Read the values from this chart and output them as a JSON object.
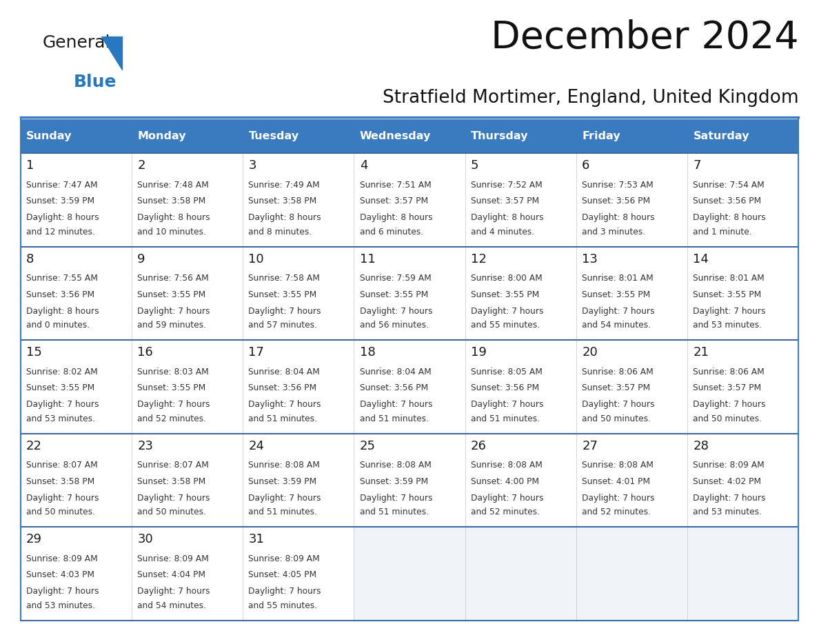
{
  "title": "December 2024",
  "subtitle": "Stratfield Mortimer, England, United Kingdom",
  "header_color": "#3a7abf",
  "header_text_color": "#ffffff",
  "cell_bg_color": "#ffffff",
  "empty_cell_bg_color": "#f0f4f8",
  "border_color": "#3a7abf",
  "row_border_color": "#3a6a9f",
  "col_border_color": "#cccccc",
  "day_names": [
    "Sunday",
    "Monday",
    "Tuesday",
    "Wednesday",
    "Thursday",
    "Friday",
    "Saturday"
  ],
  "logo_color1": "#1a1a1a",
  "logo_color2": "#2878bf",
  "triangle_color": "#2878bf",
  "weeks": [
    [
      {
        "day": 1,
        "sunrise": "7:47 AM",
        "sunset": "3:59 PM",
        "daylight1": "8 hours",
        "daylight2": "and 12 minutes."
      },
      {
        "day": 2,
        "sunrise": "7:48 AM",
        "sunset": "3:58 PM",
        "daylight1": "8 hours",
        "daylight2": "and 10 minutes."
      },
      {
        "day": 3,
        "sunrise": "7:49 AM",
        "sunset": "3:58 PM",
        "daylight1": "8 hours",
        "daylight2": "and 8 minutes."
      },
      {
        "day": 4,
        "sunrise": "7:51 AM",
        "sunset": "3:57 PM",
        "daylight1": "8 hours",
        "daylight2": "and 6 minutes."
      },
      {
        "day": 5,
        "sunrise": "7:52 AM",
        "sunset": "3:57 PM",
        "daylight1": "8 hours",
        "daylight2": "and 4 minutes."
      },
      {
        "day": 6,
        "sunrise": "7:53 AM",
        "sunset": "3:56 PM",
        "daylight1": "8 hours",
        "daylight2": "and 3 minutes."
      },
      {
        "day": 7,
        "sunrise": "7:54 AM",
        "sunset": "3:56 PM",
        "daylight1": "8 hours",
        "daylight2": "and 1 minute."
      }
    ],
    [
      {
        "day": 8,
        "sunrise": "7:55 AM",
        "sunset": "3:56 PM",
        "daylight1": "8 hours",
        "daylight2": "and 0 minutes."
      },
      {
        "day": 9,
        "sunrise": "7:56 AM",
        "sunset": "3:55 PM",
        "daylight1": "7 hours",
        "daylight2": "and 59 minutes."
      },
      {
        "day": 10,
        "sunrise": "7:58 AM",
        "sunset": "3:55 PM",
        "daylight1": "7 hours",
        "daylight2": "and 57 minutes."
      },
      {
        "day": 11,
        "sunrise": "7:59 AM",
        "sunset": "3:55 PM",
        "daylight1": "7 hours",
        "daylight2": "and 56 minutes."
      },
      {
        "day": 12,
        "sunrise": "8:00 AM",
        "sunset": "3:55 PM",
        "daylight1": "7 hours",
        "daylight2": "and 55 minutes."
      },
      {
        "day": 13,
        "sunrise": "8:01 AM",
        "sunset": "3:55 PM",
        "daylight1": "7 hours",
        "daylight2": "and 54 minutes."
      },
      {
        "day": 14,
        "sunrise": "8:01 AM",
        "sunset": "3:55 PM",
        "daylight1": "7 hours",
        "daylight2": "and 53 minutes."
      }
    ],
    [
      {
        "day": 15,
        "sunrise": "8:02 AM",
        "sunset": "3:55 PM",
        "daylight1": "7 hours",
        "daylight2": "and 53 minutes."
      },
      {
        "day": 16,
        "sunrise": "8:03 AM",
        "sunset": "3:55 PM",
        "daylight1": "7 hours",
        "daylight2": "and 52 minutes."
      },
      {
        "day": 17,
        "sunrise": "8:04 AM",
        "sunset": "3:56 PM",
        "daylight1": "7 hours",
        "daylight2": "and 51 minutes."
      },
      {
        "day": 18,
        "sunrise": "8:04 AM",
        "sunset": "3:56 PM",
        "daylight1": "7 hours",
        "daylight2": "and 51 minutes."
      },
      {
        "day": 19,
        "sunrise": "8:05 AM",
        "sunset": "3:56 PM",
        "daylight1": "7 hours",
        "daylight2": "and 51 minutes."
      },
      {
        "day": 20,
        "sunrise": "8:06 AM",
        "sunset": "3:57 PM",
        "daylight1": "7 hours",
        "daylight2": "and 50 minutes."
      },
      {
        "day": 21,
        "sunrise": "8:06 AM",
        "sunset": "3:57 PM",
        "daylight1": "7 hours",
        "daylight2": "and 50 minutes."
      }
    ],
    [
      {
        "day": 22,
        "sunrise": "8:07 AM",
        "sunset": "3:58 PM",
        "daylight1": "7 hours",
        "daylight2": "and 50 minutes."
      },
      {
        "day": 23,
        "sunrise": "8:07 AM",
        "sunset": "3:58 PM",
        "daylight1": "7 hours",
        "daylight2": "and 50 minutes."
      },
      {
        "day": 24,
        "sunrise": "8:08 AM",
        "sunset": "3:59 PM",
        "daylight1": "7 hours",
        "daylight2": "and 51 minutes."
      },
      {
        "day": 25,
        "sunrise": "8:08 AM",
        "sunset": "3:59 PM",
        "daylight1": "7 hours",
        "daylight2": "and 51 minutes."
      },
      {
        "day": 26,
        "sunrise": "8:08 AM",
        "sunset": "4:00 PM",
        "daylight1": "7 hours",
        "daylight2": "and 52 minutes."
      },
      {
        "day": 27,
        "sunrise": "8:08 AM",
        "sunset": "4:01 PM",
        "daylight1": "7 hours",
        "daylight2": "and 52 minutes."
      },
      {
        "day": 28,
        "sunrise": "8:09 AM",
        "sunset": "4:02 PM",
        "daylight1": "7 hours",
        "daylight2": "and 53 minutes."
      }
    ],
    [
      {
        "day": 29,
        "sunrise": "8:09 AM",
        "sunset": "4:03 PM",
        "daylight1": "7 hours",
        "daylight2": "and 53 minutes."
      },
      {
        "day": 30,
        "sunrise": "8:09 AM",
        "sunset": "4:04 PM",
        "daylight1": "7 hours",
        "daylight2": "and 54 minutes."
      },
      {
        "day": 31,
        "sunrise": "8:09 AM",
        "sunset": "4:05 PM",
        "daylight1": "7 hours",
        "daylight2": "and 55 minutes."
      },
      null,
      null,
      null,
      null
    ]
  ]
}
